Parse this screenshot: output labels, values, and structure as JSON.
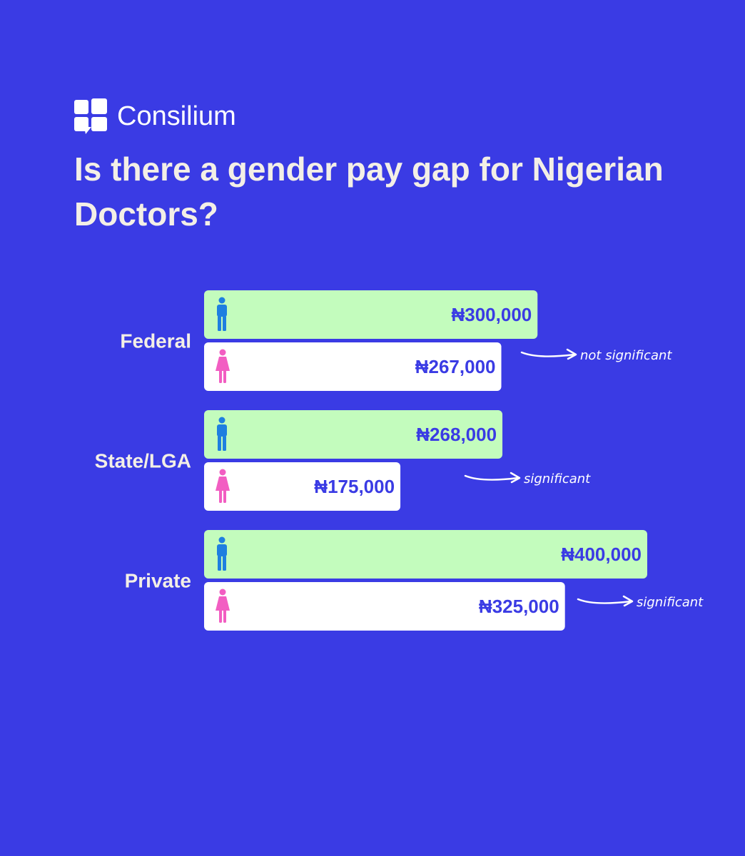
{
  "brand": {
    "name": "Consilium",
    "logo_icon": "consilium-logo-icon"
  },
  "colors": {
    "background": "#3a3be4",
    "male_bar": "#c3fcbd",
    "female_bar": "#ffffff",
    "value_text": "#3a3be4",
    "male_icon": "#1e7fe0",
    "female_icon": "#f25ec2",
    "text_light": "#f3efe6"
  },
  "chart_data": {
    "type": "bar",
    "orientation": "horizontal",
    "title": "Is there a gender pay gap for Nigerian Doctors?",
    "categories": [
      "Federal",
      "State/LGA",
      "Private"
    ],
    "series": [
      {
        "icon": "male-icon",
        "values": [
          300000,
          268000,
          400000
        ],
        "labels": [
          "₦300,000",
          "₦268,000",
          "₦400,000"
        ]
      },
      {
        "icon": "female-icon",
        "values": [
          267000,
          175000,
          325000
        ],
        "labels": [
          "₦267,000",
          "₦175,000",
          "₦325,000"
        ]
      }
    ],
    "annotations": [
      "not significant",
      "significant",
      "significant"
    ],
    "xlim": [
      0,
      400000
    ],
    "grid": false,
    "legend": "none"
  }
}
